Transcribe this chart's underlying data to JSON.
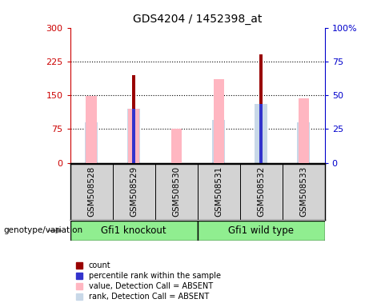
{
  "title": "GDS4204 / 1452398_at",
  "samples": [
    "GSM508528",
    "GSM508529",
    "GSM508530",
    "GSM508531",
    "GSM508532",
    "GSM508533"
  ],
  "groups": [
    {
      "label": "Gfi1 knockout",
      "indices": [
        0,
        1,
        2
      ]
    },
    {
      "label": "Gfi1 wild type",
      "indices": [
        3,
        4,
        5
      ]
    }
  ],
  "count_values": [
    0,
    195,
    0,
    0,
    240,
    0
  ],
  "percentile_values": [
    0,
    120,
    0,
    0,
    130,
    0
  ],
  "absent_value_values": [
    148,
    120,
    75,
    185,
    0,
    143
  ],
  "absent_rank_values": [
    90,
    120,
    0,
    95,
    130,
    90
  ],
  "ylim_left": [
    0,
    300
  ],
  "ylim_right": [
    0,
    100
  ],
  "yticks_left": [
    0,
    75,
    150,
    225,
    300
  ],
  "yticks_right": [
    0,
    25,
    50,
    75,
    100
  ],
  "ytick_labels_right": [
    "0",
    "25",
    "50",
    "75",
    "100%"
  ],
  "color_count": "#990000",
  "color_percentile": "#3333cc",
  "color_absent_value": "#ffb6c1",
  "color_absent_rank": "#c8d8e8",
  "left_axis_color": "#cc0000",
  "right_axis_color": "#0000cc",
  "group_box_color": "#90ee90",
  "sample_bg_color": "#d3d3d3",
  "genotype_label": "genotype/variation",
  "legend_labels": [
    "count",
    "percentile rank within the sample",
    "value, Detection Call = ABSENT",
    "rank, Detection Call = ABSENT"
  ]
}
